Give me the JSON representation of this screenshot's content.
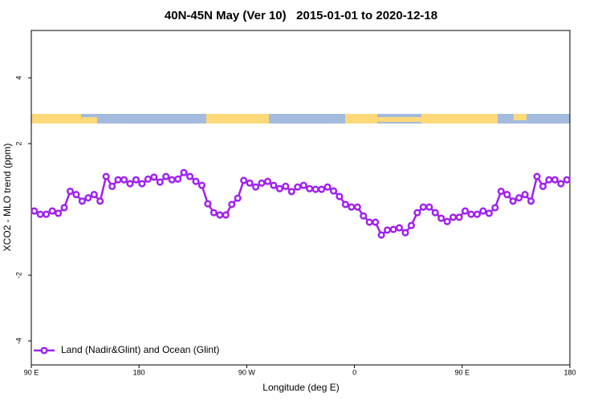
{
  "chart_data": {
    "type": "line",
    "title": "40N-45N May (Ver 10)   2015-01-01 to 2020-12-18",
    "x_label": "Longitude (deg E)",
    "y_label": "XCO2 - MLO trend (ppm)",
    "xlim": [
      90,
      540
    ],
    "ylim": [
      -4.73,
      5.44
    ],
    "xticks": [
      {
        "value": 90,
        "label": "90 E"
      },
      {
        "value": 180,
        "label": "180"
      },
      {
        "value": 270,
        "label": "90 W"
      },
      {
        "value": 360,
        "label": "0"
      },
      {
        "value": 450,
        "label": "90 E"
      },
      {
        "value": 540,
        "label": "180"
      }
    ],
    "yticks": [
      -4,
      -2,
      2,
      4
    ],
    "legend_position": "bottomleft",
    "x": [
      92.5,
      97.5,
      102.5,
      107.5,
      112.5,
      117.5,
      122.5,
      127.5,
      132.5,
      137.5,
      142.5,
      147.5,
      152.5,
      157.5,
      162.5,
      167.5,
      172.5,
      177.5,
      182.5,
      187.5,
      192.5,
      197.5,
      202.5,
      207.5,
      212.5,
      217.5,
      222.5,
      227.5,
      232.5,
      237.5,
      242.5,
      247.5,
      252.5,
      257.5,
      262.5,
      267.5,
      272.5,
      277.5,
      282.5,
      287.5,
      292.5,
      297.5,
      302.5,
      307.5,
      312.5,
      317.5,
      322.5,
      327.5,
      332.5,
      337.5,
      342.5,
      347.5,
      352.5,
      357.5,
      362.5,
      367.5,
      372.5,
      377.5,
      382.5,
      387.5,
      392.5,
      397.5,
      402.5,
      407.5,
      412.5,
      417.5,
      422.5,
      427.5,
      432.5,
      437.5,
      442.5,
      447.5,
      452.5,
      457.5,
      462.5,
      467.5,
      472.5,
      477.5,
      482.5,
      487.5,
      492.5,
      497.5,
      502.5,
      507.5,
      512.5,
      517.5,
      522.5,
      527.5,
      532.5,
      537.5
    ],
    "series": [
      {
        "name": "Land (Nadir&Glint) and Ocean (Glint)",
        "color": "#a020f0",
        "values": [
          -0.05,
          -0.15,
          -0.15,
          -0.05,
          -0.12,
          0.05,
          0.55,
          0.45,
          0.25,
          0.35,
          0.45,
          0.25,
          1.0,
          0.7,
          0.9,
          0.9,
          0.78,
          0.9,
          0.78,
          0.92,
          0.98,
          0.83,
          1.0,
          0.9,
          0.92,
          1.12,
          1.0,
          0.85,
          0.73,
          0.17,
          -0.1,
          -0.17,
          -0.17,
          0.15,
          0.34,
          0.88,
          0.8,
          0.68,
          0.8,
          0.85,
          0.73,
          0.63,
          0.7,
          0.54,
          0.68,
          0.73,
          0.63,
          0.61,
          0.61,
          0.68,
          0.56,
          0.39,
          0.15,
          0.07,
          0.07,
          -0.2,
          -0.39,
          -0.39,
          -0.78,
          -0.63,
          -0.61,
          -0.56,
          -0.71,
          -0.49,
          -0.1,
          0.07,
          0.07,
          -0.1,
          -0.27,
          -0.37,
          -0.24,
          -0.24,
          -0.05,
          -0.15,
          -0.15,
          -0.05,
          -0.12,
          0.05,
          0.55,
          0.45,
          0.25,
          0.35,
          0.45,
          0.25,
          1.0,
          0.7,
          0.9,
          0.9,
          0.78,
          0.9
        ]
      }
    ]
  }
}
